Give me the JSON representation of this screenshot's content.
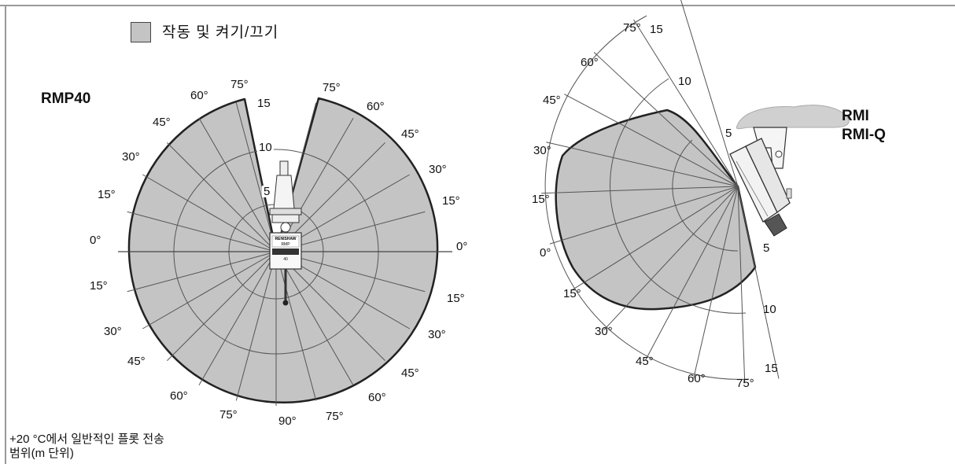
{
  "legend": {
    "label": "작동 및 켜기/끄기",
    "swatch_color": "#c4c4c4"
  },
  "left_diagram": {
    "title": "RMP40",
    "range_labels": [
      "5",
      "10",
      "15"
    ],
    "angle_labels_upper_left": [
      "75°",
      "60°",
      "45°",
      "30°",
      "15°"
    ],
    "angle_labels_upper_right": [
      "75°",
      "60°",
      "45°",
      "30°",
      "15°"
    ],
    "angle_labels_lower_left": [
      "15°",
      "30°",
      "45°",
      "60°",
      "75°"
    ],
    "angle_labels_lower_right": [
      "15°",
      "30°",
      "45°",
      "60°",
      "75°"
    ],
    "zero_left": "0°",
    "zero_right": "0°",
    "bottom": "90°",
    "probe_brand": "RENISHAW",
    "probe_model": "RMP",
    "probe_size": "40"
  },
  "right_diagram": {
    "title_line1": "RMI",
    "title_line2": "RMI-Q",
    "range_labels_top": [
      "5",
      "10",
      "15"
    ],
    "range_labels_bottom": [
      "5",
      "10",
      "15"
    ],
    "angle_labels_left": [
      "75°",
      "60°",
      "45°",
      "30°",
      "15°",
      "0°"
    ],
    "angle_labels_bottom": [
      "15°",
      "30°",
      "45°",
      "60°",
      "75°"
    ]
  },
  "note": {
    "line1": "+20 °C에서 일반적인 플롯 전송",
    "line2": "범위(m 단위)"
  },
  "colors": {
    "fill": "#c4c4c4",
    "line": "#333333",
    "mount": "#d0d0d0"
  }
}
